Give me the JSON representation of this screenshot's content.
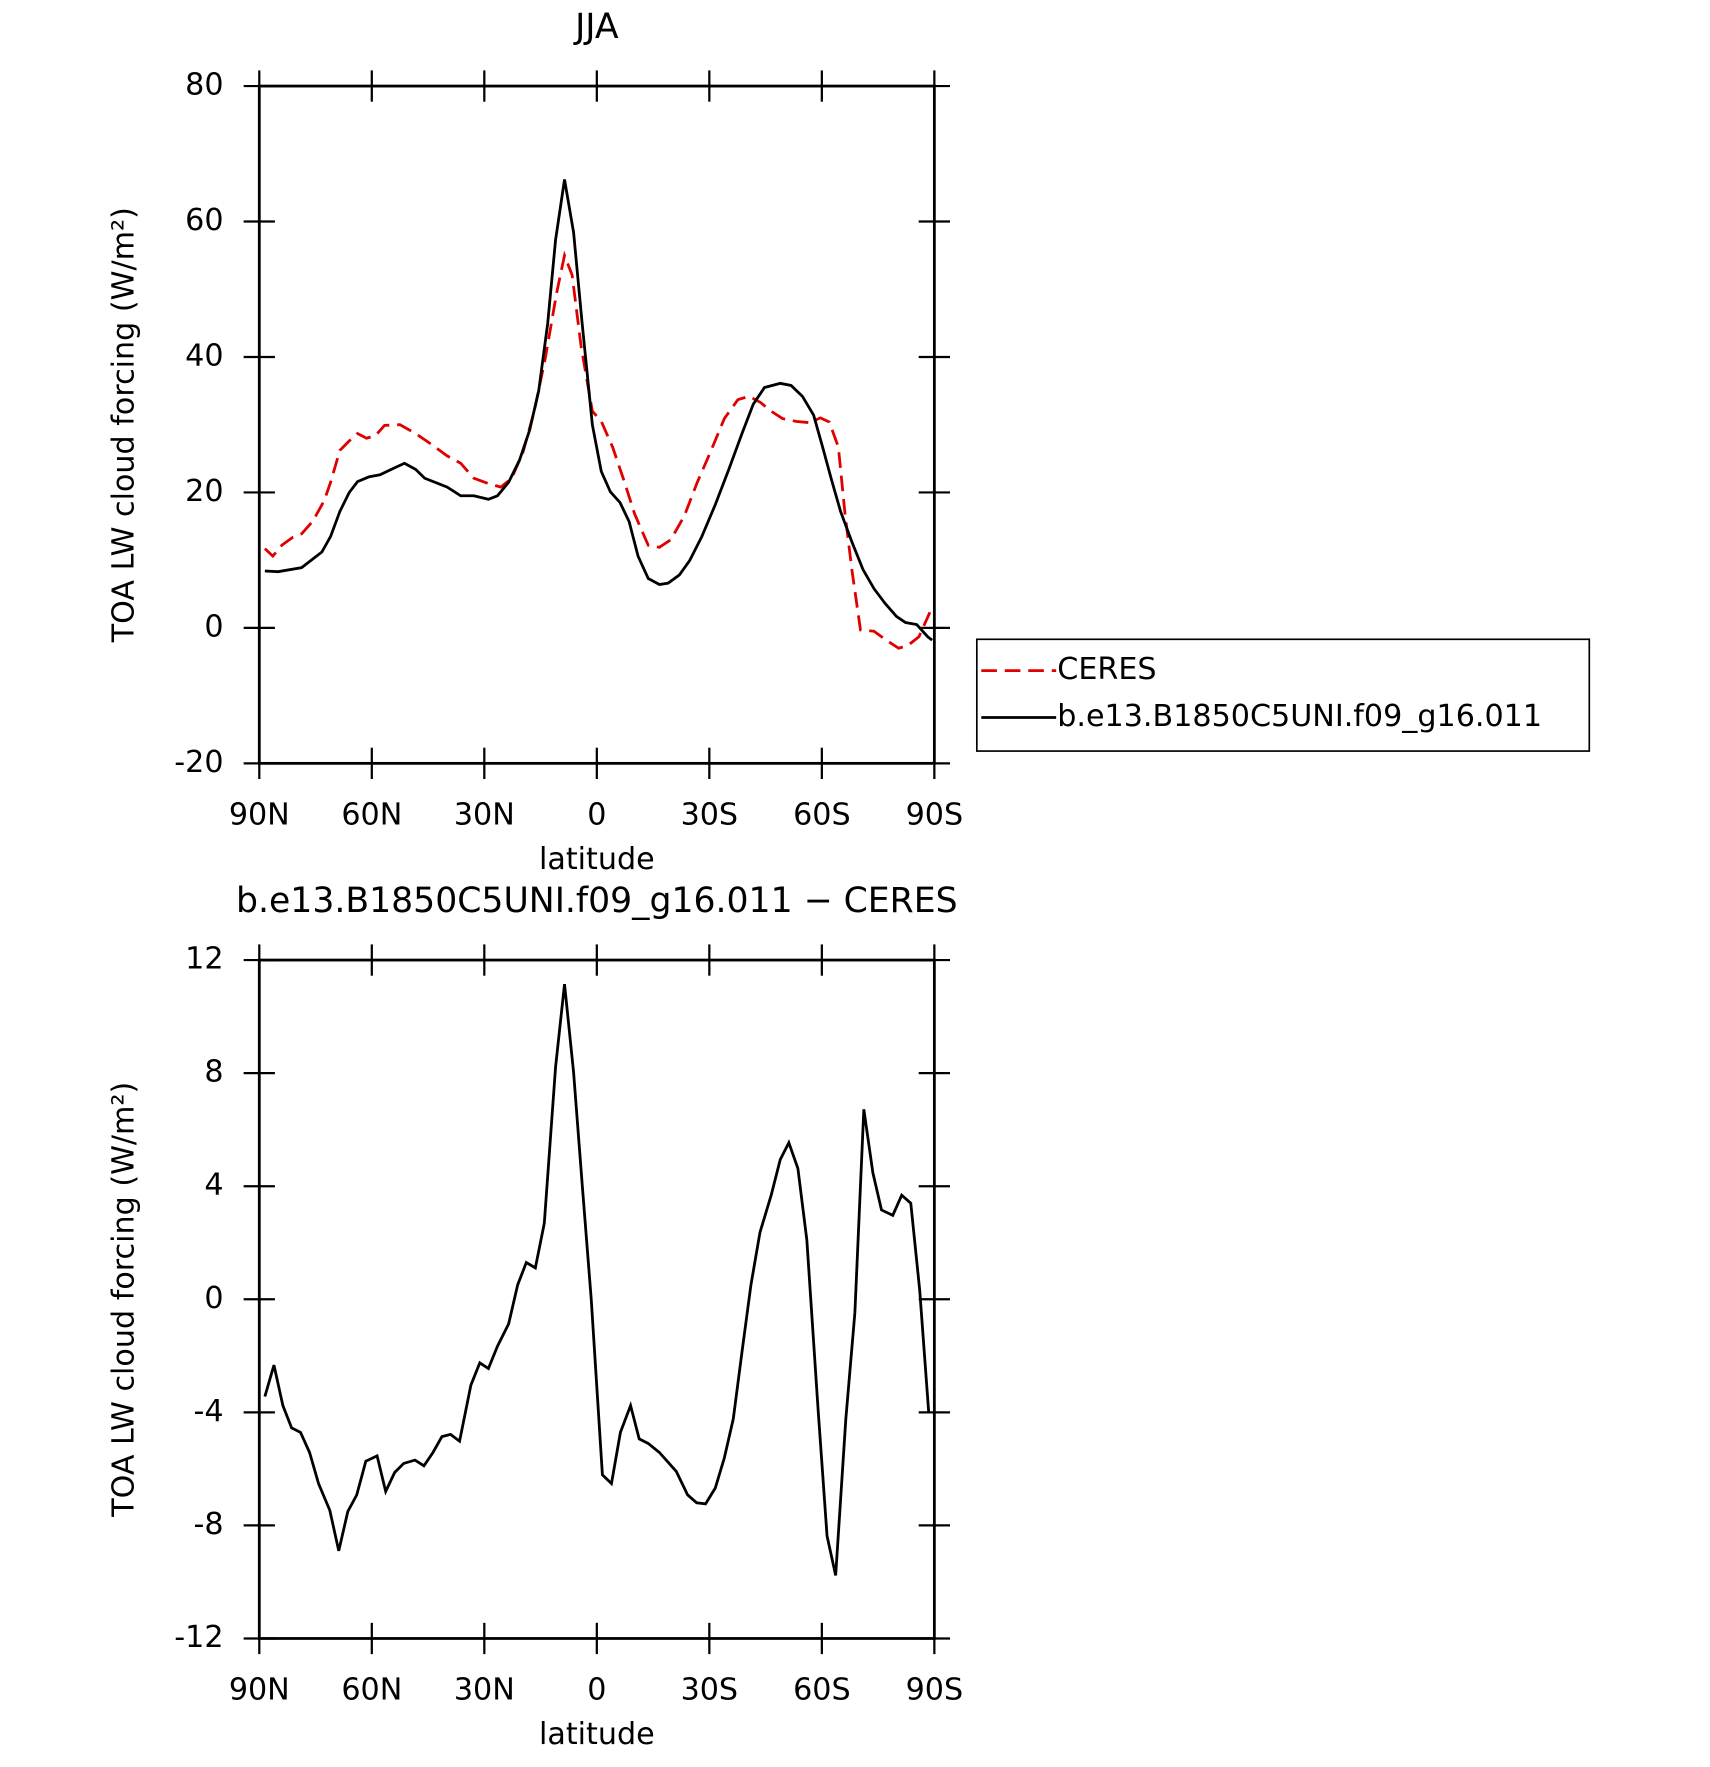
{
  "chart_data": [
    {
      "type": "line",
      "title": "JJA",
      "x_label": "latitude",
      "y_label": "TOA LW cloud forcing (W/m²)",
      "xlim": [
        90,
        -90
      ],
      "xticks": [
        {
          "value": 90,
          "label": "90N"
        },
        {
          "value": 60,
          "label": "60N"
        },
        {
          "value": 30,
          "label": "30N"
        },
        0,
        {
          "value": -30,
          "label": "30S"
        },
        {
          "value": -60,
          "label": "60S"
        },
        {
          "value": -90,
          "label": "90S"
        }
      ],
      "ylim": [
        -20,
        80
      ],
      "yticks": [
        -20,
        0,
        20,
        40,
        60,
        80
      ],
      "legend": "right",
      "series": [
        {
          "name": "CERES",
          "color": "#e00000",
          "dashed": true,
          "x": [
            88.5,
            86.4,
            84,
            81,
            78.7,
            75.7,
            72.7,
            71,
            68.5,
            66,
            63.8,
            61.4,
            59,
            56.6,
            52.5,
            48.3,
            44.1,
            39.9,
            36.3,
            32.8,
            28.9,
            25.6,
            22.7,
            19.7,
            16.7,
            13.7,
            10.7,
            8.6,
            6.6,
            4.2,
            1.2,
            -1.2,
            -4.2,
            -7.2,
            -10.1,
            -13.7,
            -16.7,
            -19.7,
            -23.3,
            -26.8,
            -30.4,
            -34,
            -37.6,
            -40.6,
            -43.6,
            -46.5,
            -49.5,
            -53.1,
            -56.7,
            -59.6,
            -62,
            -64.4,
            -66.2,
            -68,
            -70.3,
            -73.9,
            -76.9,
            -80.5,
            -82.9,
            -85.9,
            -88.8
          ],
          "values": [
            11.7,
            10.6,
            12.2,
            13.4,
            13.9,
            15.8,
            18.8,
            21.5,
            26.2,
            27.6,
            28.7,
            28,
            28.4,
            29.9,
            30,
            28.7,
            27.1,
            25.4,
            24.3,
            22.1,
            21.3,
            20.8,
            22.1,
            25.9,
            32,
            39.9,
            49.5,
            55,
            52.1,
            41.6,
            32,
            30.5,
            26.7,
            21.8,
            16.8,
            12.2,
            11.9,
            13,
            16.5,
            21.5,
            26.1,
            30.9,
            33.7,
            34.2,
            33.3,
            32,
            30.9,
            30.5,
            30.3,
            31,
            30.4,
            26.7,
            16.8,
            8.6,
            -0.3,
            -0.5,
            -1.7,
            -3,
            -2.6,
            -1.3,
            2.3
          ]
        },
        {
          "name": "b.e13.B1850C5UNI.f09_g16.011",
          "color": "#000000",
          "dashed": false,
          "x": [
            88.5,
            85,
            78.7,
            73.3,
            71,
            68.5,
            66,
            63.8,
            60.8,
            57.8,
            54.8,
            51.3,
            48.3,
            45.9,
            42.3,
            39.9,
            36.3,
            32.8,
            28.9,
            26.5,
            23.5,
            20.6,
            17.9,
            15.5,
            13.1,
            11,
            8.6,
            6.2,
            3.9,
            1.2,
            -1.2,
            -3.6,
            -6.2,
            -8.6,
            -11,
            -13.7,
            -16.7,
            -19,
            -22,
            -24.7,
            -28,
            -31.6,
            -35.2,
            -38.7,
            -41.7,
            -44.7,
            -48.9,
            -51.8,
            -54.8,
            -57.8,
            -60.2,
            -62.6,
            -65,
            -68,
            -71,
            -73.9,
            -76.9,
            -79.9,
            -82.3,
            -85.3,
            -88.2,
            -89.4
          ],
          "values": [
            8.4,
            8.3,
            8.9,
            11.2,
            13.5,
            17.2,
            20,
            21.6,
            22.3,
            22.6,
            23.4,
            24.3,
            23.4,
            22.1,
            21.3,
            20.8,
            19.5,
            19.5,
            19,
            19.5,
            21.5,
            24.8,
            29.2,
            35,
            44.9,
            57.3,
            66.2,
            58.4,
            44.9,
            30,
            23.1,
            20.1,
            18.5,
            15.7,
            10.6,
            7.3,
            6.4,
            6.6,
            7.8,
            9.9,
            13.5,
            18.2,
            23.4,
            28.7,
            33,
            35.5,
            36.1,
            35.8,
            34.2,
            31.4,
            26.7,
            21.8,
            17.2,
            12.7,
            8.6,
            5.8,
            3.6,
            1.7,
            0.8,
            0.5,
            -1.3,
            -1.8
          ]
        }
      ]
    },
    {
      "type": "line",
      "title": "b.e13.B1850C5UNI.f09_g16.011 − CERES",
      "x_label": "latitude",
      "y_label": "TOA LW cloud forcing (W/m²)",
      "xlim": [
        90,
        -90
      ],
      "xticks": [
        {
          "value": 90,
          "label": "90N"
        },
        {
          "value": 60,
          "label": "60N"
        },
        {
          "value": 30,
          "label": "30N"
        },
        0,
        {
          "value": -30,
          "label": "30S"
        },
        {
          "value": -60,
          "label": "60S"
        },
        {
          "value": -90,
          "label": "90S"
        }
      ],
      "ylim": [
        -12,
        12
      ],
      "yticks": [
        -12,
        -8,
        -4,
        0,
        4,
        8,
        12
      ],
      "series": [
        {
          "color": "#000000",
          "dashed": false,
          "x": [
            88.5,
            86.1,
            83.7,
            81.4,
            79,
            76.6,
            74.2,
            71.2,
            68.8,
            66.4,
            64,
            61.6,
            58.6,
            56.3,
            53.9,
            51.5,
            48.5,
            46.1,
            43.7,
            41.3,
            39,
            36.6,
            33.6,
            31.2,
            28.9,
            26.5,
            23.5,
            21.1,
            18.8,
            16.4,
            14,
            11,
            8.6,
            6.2,
            3.9,
            1.5,
            -1.5,
            -3.9,
            -6.3,
            -9,
            -11.3,
            -13.7,
            -16.7,
            -21.2,
            -24.2,
            -26.6,
            -29,
            -31.6,
            -34,
            -36.4,
            -38.7,
            -41.1,
            -43.5,
            -46.5,
            -48.9,
            -51.2,
            -53.6,
            -56,
            -59,
            -61.4,
            -63.7,
            -66.4,
            -68.8,
            -71.2,
            -73.6,
            -75.9,
            -78.9,
            -81.3,
            -83.7,
            -86.1,
            -88.5
          ],
          "values": [
            -3.44,
            -2.33,
            -3.76,
            -4.55,
            -4.71,
            -5.42,
            -6.52,
            -7.47,
            -8.9,
            -7.51,
            -6.92,
            -5.73,
            -5.54,
            -6.8,
            -6.13,
            -5.81,
            -5.69,
            -5.89,
            -5.42,
            -4.86,
            -4.78,
            -5.02,
            -3.04,
            -2.25,
            -2.45,
            -1.66,
            -0.87,
            0.51,
            1.3,
            1.11,
            2.69,
            8.22,
            11.15,
            8.03,
            4.07,
            0,
            -6.21,
            -6.52,
            -4.71,
            -3.76,
            -4.94,
            -5.1,
            -5.42,
            -6.09,
            -6.92,
            -7.2,
            -7.24,
            -6.68,
            -5.61,
            -4.23,
            -1.86,
            0.51,
            2.37,
            3.68,
            4.94,
            5.54,
            4.63,
            2.1,
            -3.91,
            -8.38,
            -9.77,
            -4.23,
            -0.47,
            6.72,
            4.47,
            3.16,
            2.97,
            3.68,
            3.4,
            0.32,
            -4.03
          ]
        }
      ]
    }
  ]
}
